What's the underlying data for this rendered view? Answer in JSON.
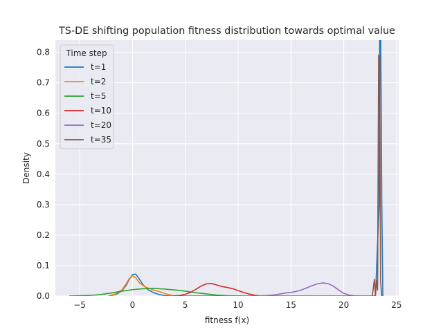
{
  "chart_data": {
    "type": "line",
    "title": "TS-DE shifting population fitness distribution towards optimal value",
    "xlabel": "fitness f(x)",
    "ylabel": "Density",
    "xlim": [
      -7.3,
      25.2
    ],
    "ylim": [
      0,
      0.84
    ],
    "xticks": [
      -5,
      0,
      5,
      10,
      15,
      20,
      25
    ],
    "xtick_labels": [
      "−5",
      "0",
      "5",
      "10",
      "15",
      "20",
      "25"
    ],
    "yticks": [
      0.0,
      0.1,
      0.2,
      0.3,
      0.4,
      0.5,
      0.6,
      0.7,
      0.8
    ],
    "ytick_labels": [
      "0.0",
      "0.1",
      "0.2",
      "0.3",
      "0.4",
      "0.5",
      "0.6",
      "0.7",
      "0.8"
    ],
    "grid": true,
    "background": "#eaeaf2",
    "legend": {
      "title": "Time step",
      "placement": "top-left"
    },
    "series": [
      {
        "name": "t=1",
        "color": "#1f77b4",
        "points": [
          [
            -2.2,
            0
          ],
          [
            -1.5,
            0.006
          ],
          [
            -1.0,
            0.018
          ],
          [
            -0.6,
            0.035
          ],
          [
            -0.3,
            0.055
          ],
          [
            0,
            0.07
          ],
          [
            0.3,
            0.072
          ],
          [
            0.6,
            0.058
          ],
          [
            1.0,
            0.037
          ],
          [
            1.5,
            0.02
          ],
          [
            2.0,
            0.011
          ],
          [
            2.5,
            0.005
          ],
          [
            3.0,
            0.002
          ],
          [
            3.5,
            0
          ],
          [
            23.0,
            0
          ],
          [
            23.35,
            0.3
          ],
          [
            23.4,
            0.84
          ],
          [
            23.5,
            0.84
          ],
          [
            23.6,
            0.3
          ],
          [
            23.7,
            0
          ]
        ]
      },
      {
        "name": "t=2",
        "color": "#ff7f0e",
        "points": [
          [
            -2.3,
            0
          ],
          [
            -1.6,
            0.007
          ],
          [
            -1.0,
            0.02
          ],
          [
            -0.6,
            0.04
          ],
          [
            -0.3,
            0.058
          ],
          [
            0,
            0.066
          ],
          [
            0.3,
            0.06
          ],
          [
            0.7,
            0.042
          ],
          [
            1.2,
            0.03
          ],
          [
            1.8,
            0.022
          ],
          [
            2.3,
            0.017
          ],
          [
            2.8,
            0.012
          ],
          [
            3.3,
            0.006
          ],
          [
            4.0,
            0
          ]
        ]
      },
      {
        "name": "t=5",
        "color": "#2ca02c",
        "points": [
          [
            -6.0,
            0
          ],
          [
            -5.0,
            0.001
          ],
          [
            -4.0,
            0.002
          ],
          [
            -3.0,
            0.005
          ],
          [
            -2.0,
            0.01
          ],
          [
            -1.0,
            0.016
          ],
          [
            0,
            0.021
          ],
          [
            1.0,
            0.024
          ],
          [
            2.0,
            0.025
          ],
          [
            3.0,
            0.023
          ],
          [
            4.0,
            0.02
          ],
          [
            5.0,
            0.016
          ],
          [
            6.0,
            0.011
          ],
          [
            7.0,
            0.007
          ],
          [
            8.0,
            0.003
          ],
          [
            9.0,
            0.001
          ],
          [
            10.3,
            0
          ]
        ]
      },
      {
        "name": "t=10",
        "color": "#d62728",
        "points": [
          [
            3.8,
            0
          ],
          [
            4.5,
            0.002
          ],
          [
            5.0,
            0.006
          ],
          [
            5.5,
            0.012
          ],
          [
            6.0,
            0.022
          ],
          [
            6.5,
            0.033
          ],
          [
            7.0,
            0.04
          ],
          [
            7.5,
            0.041
          ],
          [
            8.0,
            0.036
          ],
          [
            8.5,
            0.031
          ],
          [
            9.0,
            0.028
          ],
          [
            9.5,
            0.024
          ],
          [
            10.0,
            0.018
          ],
          [
            10.5,
            0.012
          ],
          [
            11.0,
            0.007
          ],
          [
            11.5,
            0.003
          ],
          [
            12.0,
            0.001
          ],
          [
            12.6,
            0
          ]
        ]
      },
      {
        "name": "t=20",
        "color": "#9467bd",
        "points": [
          [
            11.5,
            0
          ],
          [
            12.5,
            0.001
          ],
          [
            13.5,
            0.004
          ],
          [
            14.0,
            0.007
          ],
          [
            14.5,
            0.01
          ],
          [
            15.0,
            0.012
          ],
          [
            15.5,
            0.015
          ],
          [
            16.0,
            0.02
          ],
          [
            16.5,
            0.027
          ],
          [
            17.0,
            0.034
          ],
          [
            17.5,
            0.04
          ],
          [
            18.0,
            0.043
          ],
          [
            18.5,
            0.041
          ],
          [
            19.0,
            0.033
          ],
          [
            19.5,
            0.02
          ],
          [
            20.0,
            0.009
          ],
          [
            20.5,
            0.003
          ],
          [
            21.0,
            0.001
          ],
          [
            22.0,
            0
          ]
        ]
      },
      {
        "name": "t=35",
        "color": "#8c564b",
        "points": [
          [
            22.7,
            0
          ],
          [
            22.9,
            0.055
          ],
          [
            23.0,
            0
          ],
          [
            23.1,
            0.05
          ],
          [
            23.2,
            0.02
          ],
          [
            23.3,
            0.79
          ],
          [
            23.4,
            0.79
          ],
          [
            23.48,
            0.05
          ],
          [
            23.6,
            0
          ]
        ]
      }
    ]
  }
}
